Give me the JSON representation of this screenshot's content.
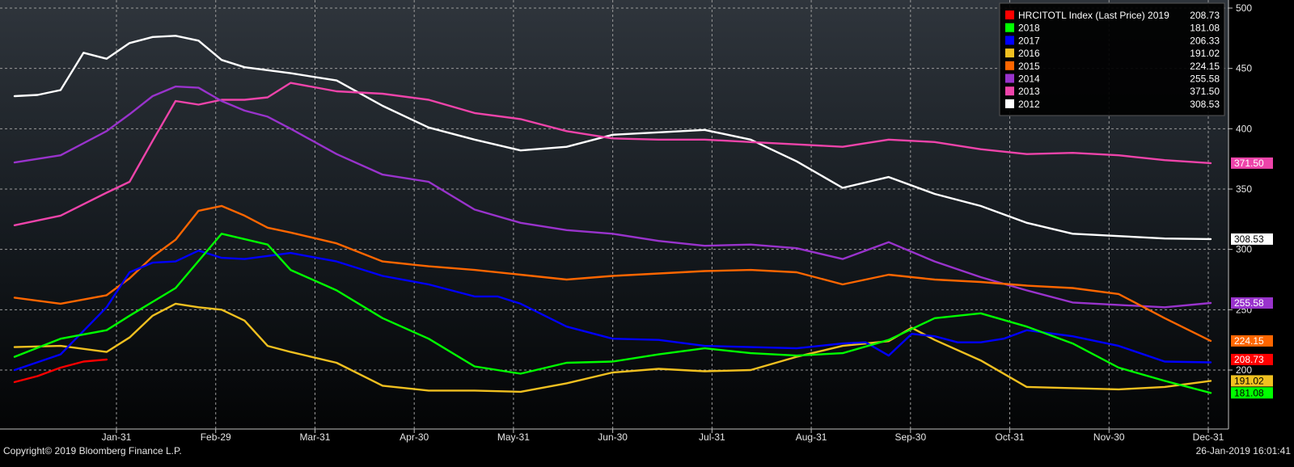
{
  "footer": {
    "copyright": "Copyright© 2019 Bloomberg Finance L.P.",
    "timestamp": "26-Jan-2019 16:01:41"
  },
  "chart_data": {
    "type": "line",
    "title": "",
    "xlabel": "",
    "ylabel": "",
    "x_ticks": [
      "Jan-31",
      "Feb-29",
      "Mar-31",
      "Apr-30",
      "May-31",
      "Jun-30",
      "Jul-31",
      "Aug-31",
      "Sep-30",
      "Oct-31",
      "Nov-30",
      "Dec-31"
    ],
    "x_axis": {
      "unit": "week of year",
      "range": [
        1,
        53
      ]
    },
    "ylim": [
      150,
      500
    ],
    "y_ticks": [
      200,
      250,
      300,
      350,
      400,
      450,
      500
    ],
    "grid": true,
    "legend_position": "top-right",
    "legend": [
      {
        "label": "HRCITOTL Index (Last Price) 2019",
        "value": "208.73",
        "color": "#ff0000"
      },
      {
        "label": "2018",
        "value": "181.08",
        "color": "#00ff00"
      },
      {
        "label": "2017",
        "value": "206.33",
        "color": "#0000ff"
      },
      {
        "label": "2016",
        "value": "191.02",
        "color": "#f0c020"
      },
      {
        "label": "2015",
        "value": "224.15",
        "color": "#ff6600"
      },
      {
        "label": "2014",
        "value": "255.58",
        "color": "#9933cc"
      },
      {
        "label": "2013",
        "value": "371.50",
        "color": "#ee44aa"
      },
      {
        "label": "2012",
        "value": "308.53",
        "color": "#ffffff"
      }
    ],
    "end_labels": [
      {
        "text": "371.50",
        "y": 371.5,
        "color": "#ee44aa"
      },
      {
        "text": "308.53",
        "y": 308.53,
        "color": "#ffffff"
      },
      {
        "text": "255.58",
        "y": 255.58,
        "color": "#9933cc"
      },
      {
        "text": "224.15",
        "y": 224.15,
        "color": "#ff6600"
      },
      {
        "text": "208.73",
        "y": 208.73,
        "color": "#ff0000"
      },
      {
        "text": "191.02",
        "y": 191.02,
        "color": "#f0c020"
      },
      {
        "text": "181.08",
        "y": 181.08,
        "color": "#00ff00"
      }
    ],
    "series": [
      {
        "name": "2019",
        "color": "#ff0000",
        "x": [
          1,
          2,
          3,
          4,
          5
        ],
        "y": [
          190,
          195,
          202,
          207,
          208.73
        ]
      },
      {
        "name": "2018",
        "color": "#00ff00",
        "x": [
          1,
          3,
          5,
          6,
          8,
          10,
          12,
          13,
          15,
          17,
          19,
          21,
          23,
          25,
          27,
          29,
          31,
          33,
          35,
          37,
          39,
          41,
          43,
          45,
          47,
          49,
          51,
          53
        ],
        "y": [
          211,
          226,
          233,
          245,
          268,
          313,
          304,
          283,
          266,
          243,
          226,
          203,
          197,
          206,
          207,
          213,
          218,
          214,
          212,
          214,
          225,
          243,
          247,
          236,
          222,
          202,
          191,
          181.08
        ]
      },
      {
        "name": "2017",
        "color": "#0000ff",
        "x": [
          1,
          3,
          5,
          6,
          7,
          8,
          9,
          10,
          11,
          13,
          15,
          17,
          19,
          21,
          22,
          23,
          25,
          27,
          29,
          31,
          33,
          35,
          37,
          38,
          39,
          40,
          41,
          42,
          43,
          44,
          45,
          47,
          49,
          51,
          53
        ],
        "y": [
          200,
          213,
          252,
          281,
          289,
          290,
          299,
          293,
          292,
          297,
          290,
          278,
          271,
          261,
          261,
          255,
          236,
          226,
          225,
          220,
          219,
          218,
          222,
          223,
          212,
          230,
          228,
          223,
          223,
          226,
          233,
          228,
          220,
          207,
          206.33
        ]
      },
      {
        "name": "2016",
        "color": "#f0c020",
        "x": [
          1,
          3,
          5,
          6,
          7,
          8,
          9,
          10,
          11,
          12,
          13,
          15,
          17,
          19,
          21,
          23,
          25,
          27,
          29,
          31,
          33,
          35,
          37,
          39,
          40,
          41,
          43,
          45,
          47,
          49,
          51,
          53
        ],
        "y": [
          219,
          220,
          215,
          227,
          245,
          255,
          252,
          250,
          241,
          220,
          215,
          206,
          187,
          183,
          183,
          182,
          189,
          198,
          201,
          199,
          200,
          211,
          220,
          224,
          235,
          225,
          208,
          186,
          185,
          184,
          186,
          191.02
        ]
      },
      {
        "name": "2015",
        "color": "#ff6600",
        "x": [
          1,
          3,
          5,
          6,
          7,
          8,
          9,
          10,
          11,
          12,
          13,
          15,
          17,
          19,
          21,
          23,
          25,
          27,
          29,
          31,
          33,
          35,
          37,
          39,
          41,
          43,
          45,
          47,
          49,
          51,
          53
        ],
        "y": [
          260,
          255,
          262,
          276,
          294,
          308,
          332,
          336,
          328,
          318,
          314,
          305,
          290,
          286,
          283,
          279,
          275,
          278,
          280,
          282,
          283,
          281,
          271,
          279,
          275,
          273,
          270,
          268,
          263,
          243,
          224.15
        ]
      },
      {
        "name": "2014",
        "color": "#9933cc",
        "x": [
          1,
          3,
          5,
          6,
          7,
          8,
          9,
          10,
          11,
          12,
          13,
          15,
          17,
          19,
          21,
          23,
          25,
          27,
          29,
          31,
          33,
          35,
          37,
          39,
          41,
          43,
          45,
          47,
          49,
          51,
          53
        ],
        "y": [
          372,
          378,
          398,
          412,
          427,
          435,
          434,
          423,
          415,
          410,
          400,
          379,
          362,
          356,
          333,
          322,
          316,
          313,
          307,
          303,
          304,
          301,
          292,
          306,
          290,
          277,
          266,
          256,
          254,
          252,
          255.58
        ]
      },
      {
        "name": "2013",
        "color": "#ee44aa",
        "x": [
          1,
          3,
          5,
          6,
          7,
          8,
          9,
          10,
          11,
          12,
          13,
          15,
          17,
          19,
          21,
          23,
          25,
          27,
          29,
          31,
          33,
          35,
          37,
          39,
          41,
          43,
          45,
          47,
          49,
          51,
          53
        ],
        "y": [
          320,
          328,
          347,
          356,
          390,
          423,
          420,
          424,
          424,
          426,
          438,
          431,
          429,
          424,
          413,
          408,
          398,
          392,
          391,
          391,
          389,
          387,
          385,
          391,
          389,
          383,
          379,
          380,
          378,
          374,
          371.5
        ]
      },
      {
        "name": "2012",
        "color": "#ffffff",
        "x": [
          1,
          2,
          3,
          4,
          5,
          6,
          7,
          8,
          9,
          10,
          11,
          13,
          15,
          17,
          19,
          21,
          23,
          25,
          27,
          29,
          31,
          33,
          35,
          37,
          39,
          41,
          43,
          45,
          47,
          49,
          51,
          53
        ],
        "y": [
          427,
          428,
          432,
          463,
          458,
          471,
          476,
          477,
          473,
          457,
          451,
          446,
          440,
          419,
          401,
          391,
          382,
          385,
          395,
          397,
          399,
          391,
          373,
          351,
          360,
          346,
          336,
          322,
          313,
          311,
          309,
          308.53
        ]
      }
    ]
  }
}
